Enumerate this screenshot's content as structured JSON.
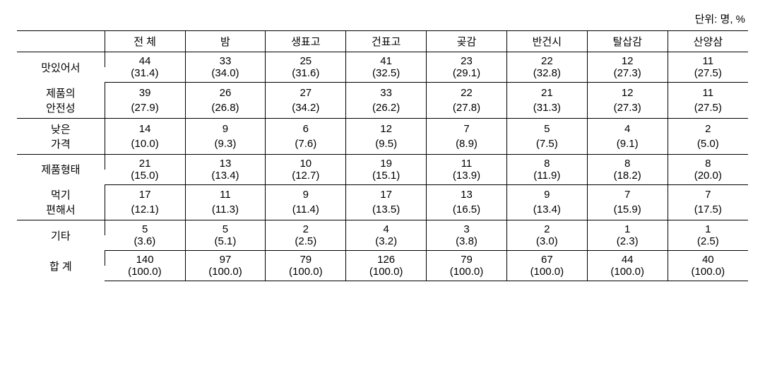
{
  "unit_label": "단위: 명, %",
  "columns": [
    "",
    "전 체",
    "밤",
    "생표고",
    "건표고",
    "곶감",
    "반건시",
    "탈삽감",
    "산양삼"
  ],
  "rows": [
    {
      "label": "맛있어서",
      "counts": [
        "44",
        "33",
        "25",
        "41",
        "23",
        "22",
        "12",
        "11"
      ],
      "pcts": [
        "(31.4)",
        "(34.0)",
        "(31.6)",
        "(32.5)",
        "(29.1)",
        "(32.8)",
        "(27.3)",
        "(27.5)"
      ]
    },
    {
      "label_l1": "제품의",
      "label_l2": "안전성",
      "counts": [
        "39",
        "26",
        "27",
        "33",
        "22",
        "21",
        "12",
        "11"
      ],
      "pcts": [
        "(27.9)",
        "(26.8)",
        "(34.2)",
        "(26.2)",
        "(27.8)",
        "(31.3)",
        "(27.3)",
        "(27.5)"
      ]
    },
    {
      "label_l1": "낮은",
      "label_l2": "가격",
      "counts": [
        "14",
        "9",
        "6",
        "12",
        "7",
        "5",
        "4",
        "2"
      ],
      "pcts": [
        "(10.0)",
        "(9.3)",
        "(7.6)",
        "(9.5)",
        "(8.9)",
        "(7.5)",
        "(9.1)",
        "(5.0)"
      ]
    },
    {
      "label": "제품형태",
      "counts": [
        "21",
        "13",
        "10",
        "19",
        "11",
        "8",
        "8",
        "8"
      ],
      "pcts": [
        "(15.0)",
        "(13.4)",
        "(12.7)",
        "(15.1)",
        "(13.9)",
        "(11.9)",
        "(18.2)",
        "(20.0)"
      ]
    },
    {
      "label_l1": "먹기",
      "label_l2": "편해서",
      "counts": [
        "17",
        "11",
        "9",
        "17",
        "13",
        "9",
        "7",
        "7"
      ],
      "pcts": [
        "(12.1)",
        "(11.3)",
        "(11.4)",
        "(13.5)",
        "(16.5)",
        "(13.4)",
        "(15.9)",
        "(17.5)"
      ]
    },
    {
      "label": "기타",
      "counts": [
        "5",
        "5",
        "2",
        "4",
        "3",
        "2",
        "1",
        "1"
      ],
      "pcts": [
        "(3.6)",
        "(5.1)",
        "(2.5)",
        "(3.2)",
        "(3.8)",
        "(3.0)",
        "(2.3)",
        "(2.5)"
      ]
    },
    {
      "label": "합 계",
      "counts": [
        "140",
        "97",
        "79",
        "126",
        "79",
        "67",
        "44",
        "40"
      ],
      "pcts": [
        "(100.0)",
        "(100.0)",
        "(100.0)",
        "(100.0)",
        "(100.0)",
        "(100.0)",
        "(100.0)",
        "(100.0)"
      ]
    }
  ]
}
